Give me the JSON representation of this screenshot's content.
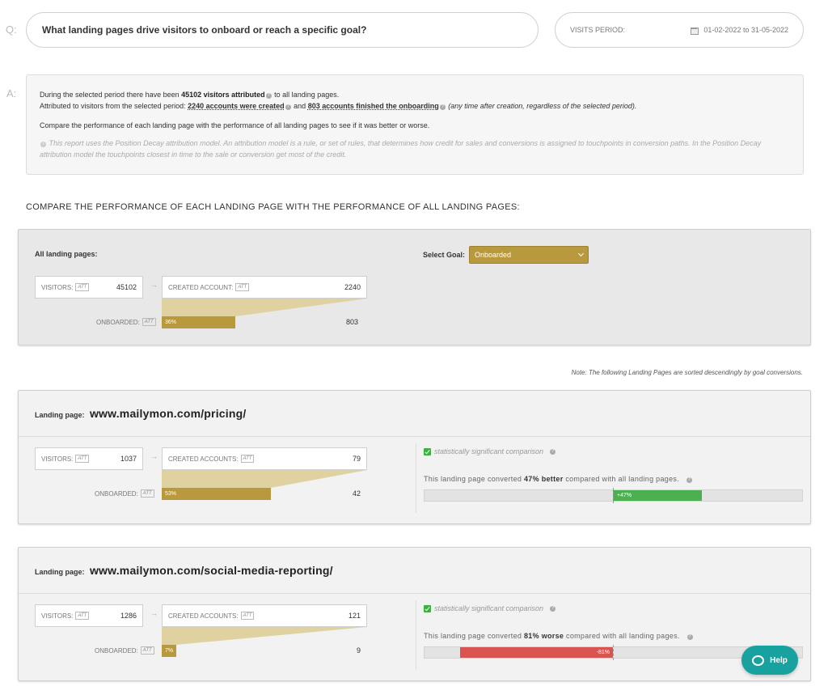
{
  "question": {
    "letter": "Q:",
    "text": "What landing pages drive visitors to onboard or reach a specific goal?"
  },
  "period": {
    "label": "VISITS PERIOD:",
    "value": "01-02-2022 to 31-05-2022",
    "icon": "calendar-icon"
  },
  "answer": {
    "letter": "A:",
    "line1_pre": "During the selected period there have been ",
    "line1_bold": "45102 visitors attributed",
    "line1_post": " to all landing pages.",
    "line2_pre": "Attributed to visitors from the selected period: ",
    "line2_bold1": "2240 accounts were created",
    "line2_mid": " and ",
    "line2_bold2": "803 accounts finished the onboarding",
    "line2_post": " (any time after creation, regardless of the selected period).",
    "line3": "Compare the performance of each landing page with the performance of all landing pages to see if it was better or worse.",
    "note": "This report uses the Position Decay attribution model. An attribution model is a rule, or set of rules, that determines how credit for sales and conversions is assigned to touchpoints in conversion paths. In the Position Decay attribution model the touchpoints closest in time to the sale or conversion get most of the credit."
  },
  "section_title": "COMPARE THE PERFORMANCE OF EACH LANDING PAGE WITH THE PERFORMANCE OF ALL LANDING PAGES:",
  "all": {
    "label": "All landing pages:",
    "goal_label": "Select Goal:",
    "goal_value": "Onboarded",
    "visitors_label": "VISITORS:",
    "visitors": "45102",
    "created_label": "CREATED ACCOUNT:",
    "created": "2240",
    "onboarded_label": "ONBOARDED:",
    "onboarded_pct": "36%",
    "onboarded": "803",
    "att": "ATT"
  },
  "sort_note": "Note: The following Landing Pages are sorted descendingly by goal conversions.",
  "landing_pages": [
    {
      "label": "Landing page:",
      "url": "www.mailymon.com/pricing/",
      "visitors_label": "VISITORS:",
      "visitors": "1037",
      "created_label": "CREATED ACCOUNTS:",
      "created": "79",
      "onboarded_label": "ONBOARDED:",
      "onboarded_pct": "53%",
      "onboarded": "42",
      "sig": "statistically significant comparison",
      "conv_pre": "This landing page converted ",
      "conv_bold": "47% better",
      "conv_post": " compared with all landing pages.",
      "delta_label": "+47%",
      "delta": 47,
      "color": "#4caf50"
    },
    {
      "label": "Landing page:",
      "url": "www.mailymon.com/social-media-reporting/",
      "visitors_label": "VISITORS:",
      "visitors": "1286",
      "created_label": "CREATED ACCOUNTS:",
      "created": "121",
      "onboarded_label": "ONBOARDED:",
      "onboarded_pct": "7%",
      "onboarded": "9",
      "sig": "statistically significant comparison",
      "conv_pre": "This landing page converted ",
      "conv_bold": "81% worse",
      "conv_post": " compared with all landing pages.",
      "delta_label": "-81%",
      "delta": -81,
      "color": "#d9534f"
    }
  ],
  "help": {
    "label": "Help"
  },
  "colors": {
    "gold": "#b8993e",
    "teal": "#17a2a0",
    "green": "#4caf50",
    "red": "#d9534f"
  }
}
